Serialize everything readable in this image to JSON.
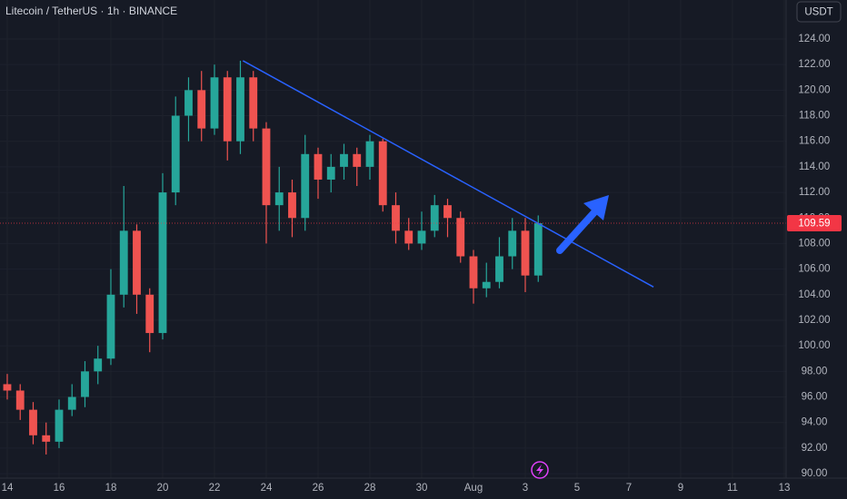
{
  "chart_data": {
    "type": "candlestick",
    "title": "Litecoin / TetherUS · 1h · BINANCE",
    "currency": "USDT",
    "up_color": "#26a69a",
    "down_color": "#ef5350",
    "grid": true,
    "xlim": [
      -0.28,
      30.07
    ],
    "ylim": [
      89.65,
      127.05
    ],
    "xticks": [
      {
        "value": 0,
        "label": "14"
      },
      {
        "value": 2,
        "label": "16"
      },
      {
        "value": 4,
        "label": "18"
      },
      {
        "value": 6,
        "label": "20"
      },
      {
        "value": 8,
        "label": "22"
      },
      {
        "value": 10,
        "label": "24"
      },
      {
        "value": 12,
        "label": "26"
      },
      {
        "value": 14,
        "label": "28"
      },
      {
        "value": 16,
        "label": "30"
      },
      {
        "value": 18,
        "label": "Aug"
      },
      {
        "value": 20,
        "label": "3"
      },
      {
        "value": 22,
        "label": "5"
      },
      {
        "value": 24,
        "label": "7"
      },
      {
        "value": 26,
        "label": "9"
      },
      {
        "value": 28,
        "label": "11"
      },
      {
        "value": 30,
        "label": "13"
      }
    ],
    "yticks": [
      {
        "value": 90,
        "label": "90.00"
      },
      {
        "value": 92,
        "label": "92.00"
      },
      {
        "value": 94,
        "label": "94.00"
      },
      {
        "value": 96,
        "label": "96.00"
      },
      {
        "value": 98,
        "label": "98.00"
      },
      {
        "value": 100,
        "label": "100.00"
      },
      {
        "value": 102,
        "label": "102.00"
      },
      {
        "value": 104,
        "label": "104.00"
      },
      {
        "value": 106,
        "label": "106.00"
      },
      {
        "value": 108,
        "label": "108.00"
      },
      {
        "value": 110,
        "label": "110.00"
      },
      {
        "value": 112,
        "label": "112.00"
      },
      {
        "value": 114,
        "label": "114.00"
      },
      {
        "value": 116,
        "label": "116.00"
      },
      {
        "value": 118,
        "label": "118.00"
      },
      {
        "value": 120,
        "label": "120.00"
      },
      {
        "value": 122,
        "label": "122.00"
      },
      {
        "value": 124,
        "label": "124.00"
      }
    ],
    "candles": {
      "x": [
        0,
        0.5,
        1,
        1.5,
        2,
        2.5,
        3,
        3.5,
        4,
        4.5,
        5,
        5.5,
        6,
        6.5,
        7,
        7.5,
        8,
        8.5,
        9,
        9.5,
        10,
        10.5,
        11,
        11.5,
        12,
        12.5,
        13,
        13.5,
        14,
        14.5,
        15,
        15.5,
        16,
        16.5,
        17,
        17.5,
        18,
        18.5,
        19,
        19.5,
        20,
        20.5
      ],
      "open": [
        97,
        96.5,
        95,
        93,
        92.5,
        95,
        96,
        98,
        99,
        104,
        109,
        104,
        101,
        112,
        118,
        120,
        117,
        121,
        116,
        121,
        117,
        111,
        112,
        110,
        115,
        113,
        114,
        115,
        114,
        116,
        111,
        109,
        108,
        109,
        111,
        110,
        107,
        104.5,
        105,
        107,
        109,
        105.5
      ],
      "high": [
        97.8,
        97,
        95.6,
        94,
        95.8,
        97,
        98.8,
        100,
        106,
        112.5,
        109.5,
        104.5,
        113.5,
        119.5,
        121,
        121.5,
        122,
        121.5,
        122.3,
        121.5,
        117.5,
        114,
        113,
        116.5,
        115.5,
        115,
        115.8,
        115.5,
        116.5,
        116.2,
        112,
        110,
        110.5,
        111.8,
        111.5,
        110.5,
        107.5,
        106.5,
        108.5,
        110,
        110,
        110.2
      ],
      "low": [
        95.8,
        94.2,
        92.3,
        91.5,
        92,
        94.5,
        95.2,
        97,
        98.5,
        103,
        102.5,
        99.5,
        100.5,
        111,
        116,
        116,
        116.5,
        114.5,
        115,
        116,
        108,
        109,
        108.5,
        109,
        111.5,
        112,
        113,
        112.5,
        113,
        110.5,
        108,
        107.5,
        107.5,
        108.5,
        108.5,
        106.5,
        103.3,
        103.8,
        104.5,
        106,
        104.2,
        105
      ],
      "close": [
        96.5,
        95,
        93,
        92.5,
        95,
        96,
        98,
        99,
        104,
        109,
        104,
        101,
        112,
        118,
        120,
        117,
        121,
        116,
        121,
        117,
        111,
        112,
        110,
        115,
        113,
        114,
        115,
        114,
        116,
        111,
        109,
        108,
        109,
        111,
        110,
        107,
        104.5,
        105,
        107,
        109,
        105.5,
        109.59
      ]
    },
    "trendline": {
      "x": [
        9.1,
        24.95
      ],
      "y": [
        122.3,
        104.6
      ],
      "color": "#2962ff"
    },
    "last_price": 109.59,
    "last_price_color": "#f23645"
  }
}
